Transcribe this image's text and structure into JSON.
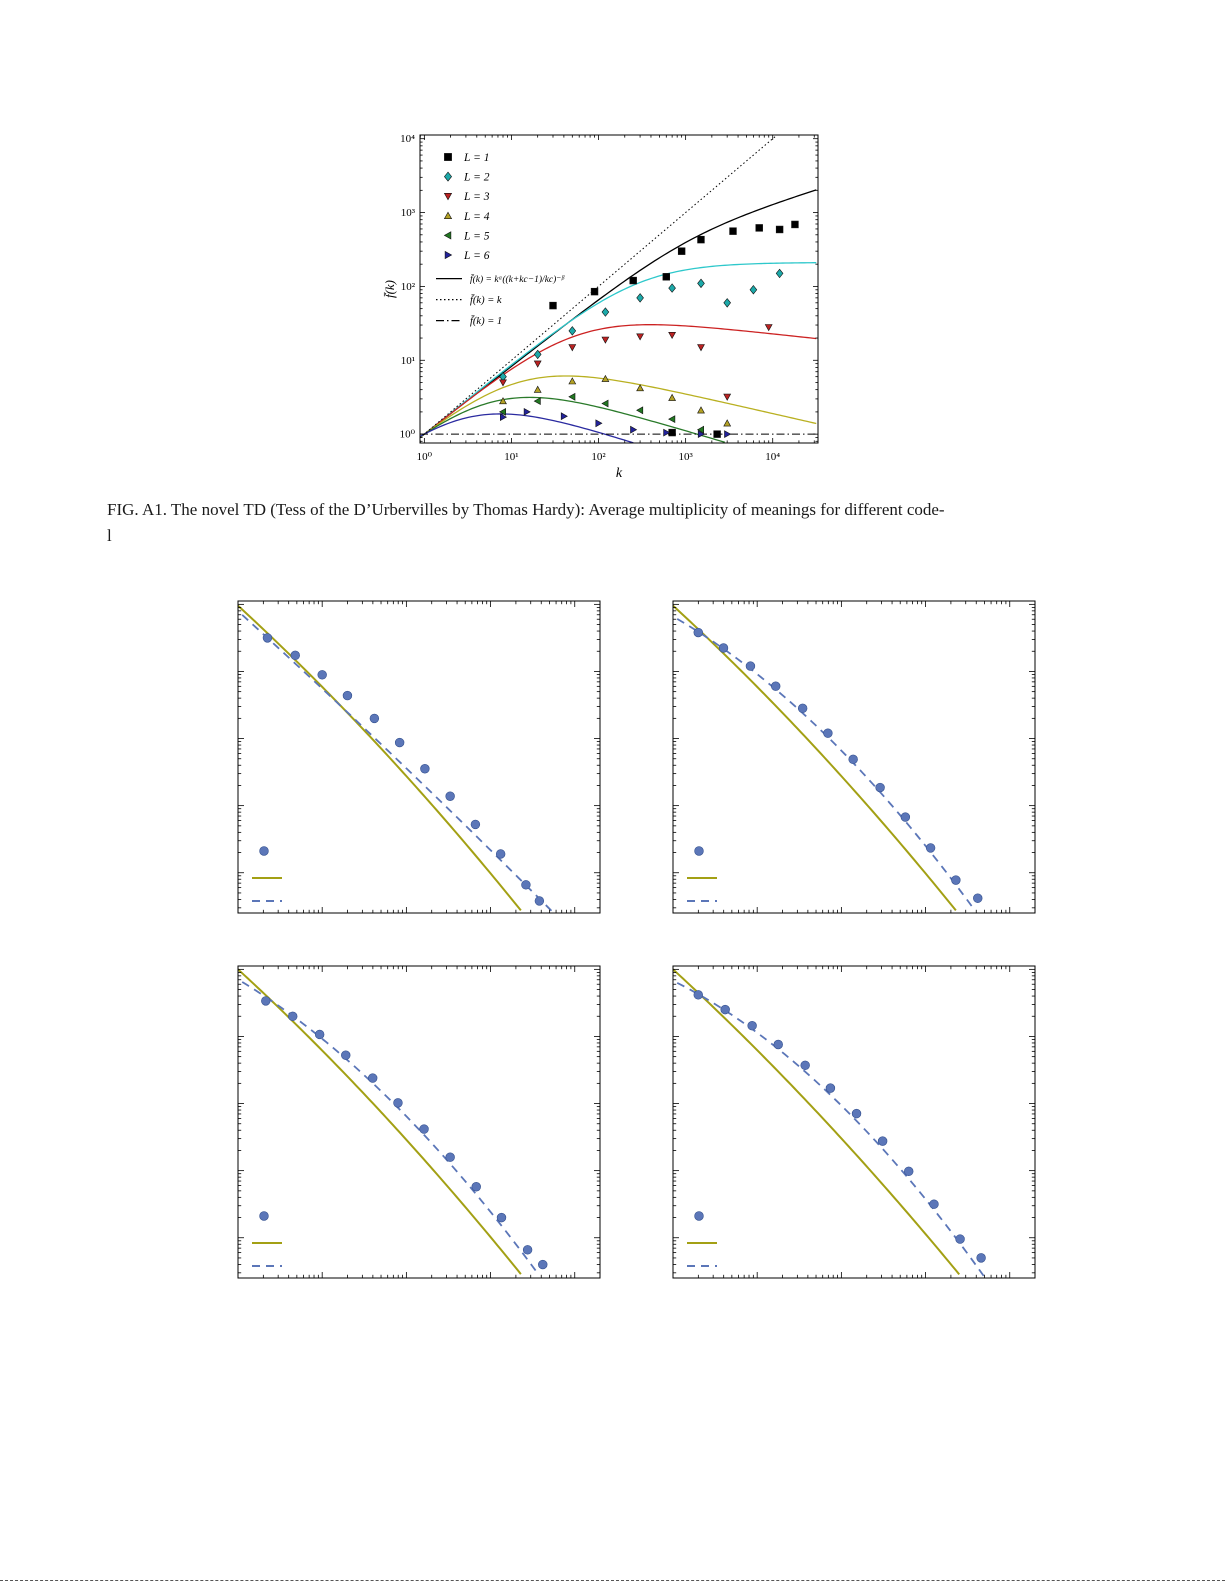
{
  "caption": {
    "line1": "FIG. A1.  The novel TD (Tess of the D’Urbervilles by Thomas Hardy): Average multiplicity of meanings for different code-",
    "line2": "l"
  },
  "chart_data": [
    {
      "id": "main",
      "type": "scatter",
      "title": "",
      "xlabel": "k",
      "ylabel": "f̄(k)",
      "xscale": "log",
      "yscale": "log",
      "xlim_log": [
        -0.05,
        4.52
      ],
      "ylim_log": [
        -0.12,
        4.05
      ],
      "xticks": {
        "decades": [
          0,
          1,
          2,
          3,
          4
        ],
        "labels": [
          "10⁰",
          "10¹",
          "10²",
          "10³",
          "10⁴"
        ]
      },
      "yticks": {
        "decades": [
          0,
          1,
          2,
          3,
          4
        ],
        "labels": [
          "10⁰",
          "10¹",
          "10²",
          "10³",
          "10⁴"
        ]
      },
      "series": [
        {
          "name": "L = 1",
          "marker": "square",
          "color": "#000000",
          "points": [
            [
              30,
              55
            ],
            [
              90,
              85
            ],
            [
              250,
              120
            ],
            [
              600,
              135
            ],
            [
              900,
              300
            ],
            [
              1500,
              430
            ],
            [
              3500,
              560
            ],
            [
              7000,
              620
            ],
            [
              12000,
              590
            ],
            [
              18000,
              690
            ],
            [
              700,
              1.05
            ],
            [
              2300,
              1.0
            ]
          ],
          "fit": {
            "alpha": 0.92,
            "kc": 1000,
            "beta": 0.55,
            "color": "#000000"
          }
        },
        {
          "name": "L = 2",
          "marker": "diamond",
          "color": "#1ca9a9",
          "points": [
            [
              8,
              6
            ],
            [
              20,
              12
            ],
            [
              50,
              25
            ],
            [
              120,
              45
            ],
            [
              300,
              70
            ],
            [
              700,
              95
            ],
            [
              1500,
              110
            ],
            [
              3000,
              60
            ],
            [
              6000,
              90
            ],
            [
              12000,
              150
            ]
          ],
          "fit": {
            "alpha": 0.95,
            "kc": 280,
            "beta": 0.95,
            "color": "#2ec8cb"
          }
        },
        {
          "name": "L = 3",
          "marker": "triangle-down",
          "color": "#bb2222",
          "points": [
            [
              8,
              5
            ],
            [
              20,
              9
            ],
            [
              50,
              15
            ],
            [
              120,
              19
            ],
            [
              300,
              21
            ],
            [
              700,
              22
            ],
            [
              1500,
              15
            ],
            [
              3000,
              3.2
            ],
            [
              9000,
              28
            ]
          ],
          "fit": {
            "alpha": 0.95,
            "kc": 55,
            "beta": 1.08,
            "color": "#cc2222"
          }
        },
        {
          "name": "L = 4",
          "marker": "triangle-up",
          "color": "#b3a125",
          "points": [
            [
              8,
              2.8
            ],
            [
              20,
              4.0
            ],
            [
              50,
              5.2
            ],
            [
              120,
              5.6
            ],
            [
              300,
              4.2
            ],
            [
              700,
              3.1
            ],
            [
              1500,
              2.1
            ],
            [
              3000,
              1.4
            ]
          ],
          "fit": {
            "alpha": 0.95,
            "kc": 13,
            "beta": 1.22,
            "color": "#b9b021"
          }
        },
        {
          "name": "L = 5",
          "marker": "triangle-left",
          "color": "#227722",
          "points": [
            [
              8,
              2.0
            ],
            [
              20,
              2.8
            ],
            [
              50,
              3.2
            ],
            [
              120,
              2.6
            ],
            [
              300,
              2.1
            ],
            [
              700,
              1.6
            ],
            [
              1500,
              1.15
            ]
          ],
          "fit": {
            "alpha": 0.95,
            "kc": 7,
            "beta": 1.3,
            "color": "#2a7a2a"
          }
        },
        {
          "name": "L = 6",
          "marker": "triangle-right",
          "color": "#22229a",
          "points": [
            [
              8,
              1.7
            ],
            [
              15,
              2.0
            ],
            [
              40,
              1.75
            ],
            [
              100,
              1.4
            ],
            [
              250,
              1.15
            ],
            [
              600,
              1.05
            ],
            [
              1500,
              1.0
            ],
            [
              3000,
              1.0
            ]
          ],
          "fit": {
            "alpha": 0.95,
            "kc": 4,
            "beta": 1.33,
            "color": "#2a2aa0"
          }
        }
      ],
      "reference_lines": [
        {
          "label": "f̄(k) = k",
          "kind": "identity",
          "dash": "1.5 2.5",
          "color": "#000000"
        },
        {
          "label": "f̄(k) = 1",
          "kind": "const",
          "value": 1,
          "dash": "8 3 1.5 3",
          "color": "#000000"
        }
      ],
      "legend": [
        {
          "swatch": "marker",
          "marker": "square",
          "color": "#000000",
          "label": "L = 1"
        },
        {
          "swatch": "marker",
          "marker": "diamond",
          "color": "#1ca9a9",
          "label": "L = 2"
        },
        {
          "swatch": "marker",
          "marker": "triangle-down",
          "color": "#bb2222",
          "label": "L = 3"
        },
        {
          "swatch": "marker",
          "marker": "triangle-up",
          "color": "#b3a125",
          "label": "L = 4"
        },
        {
          "swatch": "marker",
          "marker": "triangle-left",
          "color": "#227722",
          "label": "L = 5"
        },
        {
          "swatch": "marker",
          "marker": "triangle-right",
          "color": "#22229a",
          "label": "L = 6"
        },
        {
          "swatch": "line",
          "color": "#000000",
          "dash": "",
          "fs": 9.5,
          "label": "f̄(k) = kᵅ((k+kc−1)/kc)⁻ᵝ"
        },
        {
          "swatch": "line",
          "color": "#000000",
          "dash": "1.5 2.5",
          "fs": 10.5,
          "label": "f̄(k) = k"
        },
        {
          "swatch": "line",
          "color": "#000000",
          "dash": "8 3 1.5 3",
          "fs": 10.5,
          "label": "f̄(k) = 1"
        }
      ]
    },
    {
      "id": "panel-tl",
      "type": "scatter",
      "xscale": "log",
      "yscale": "log",
      "xlim_log": [
        0,
        4.3
      ],
      "ylim_log": [
        -4.6,
        0.05
      ],
      "xticks": {
        "decades": [
          0,
          1,
          2,
          3,
          4
        ],
        "labels": []
      },
      "yticks": {
        "decades": [
          0,
          -1,
          -2,
          -3,
          -4
        ],
        "labels": []
      },
      "dots": {
        "color": "#5b76b8",
        "edge": "#33508f",
        "points_log": [
          [
            0.35,
            -0.5
          ],
          [
            0.68,
            -0.76
          ],
          [
            1.0,
            -1.05
          ],
          [
            1.3,
            -1.36
          ],
          [
            1.62,
            -1.7
          ],
          [
            1.92,
            -2.06
          ],
          [
            2.22,
            -2.45
          ],
          [
            2.52,
            -2.86
          ],
          [
            2.82,
            -3.28
          ],
          [
            3.12,
            -3.72
          ],
          [
            3.42,
            -4.18
          ],
          [
            3.58,
            -4.42
          ]
        ]
      },
      "solid": {
        "a": 1.15,
        "b": 0.06,
        "off": 0.02,
        "x0": 0,
        "color": "#a3a014"
      },
      "dashed": {
        "a": 1.14,
        "b": 0.016,
        "off": 0.1,
        "x0": 0.05,
        "color": "#5b76b8",
        "dash": "8 6"
      },
      "legend": [
        {
          "swatch": "marker",
          "marker": "circle",
          "color": "#5b76b8",
          "label": ""
        },
        {
          "swatch": "line",
          "color": "#a3a014",
          "dash": "",
          "label": ""
        },
        {
          "swatch": "line",
          "color": "#5b76b8",
          "dash": "8 6",
          "label": ""
        }
      ]
    },
    {
      "id": "panel-tr",
      "type": "scatter",
      "xscale": "log",
      "yscale": "log",
      "xlim_log": [
        0,
        4.3
      ],
      "ylim_log": [
        -4.6,
        0.05
      ],
      "xticks": {
        "decades": [
          0,
          1,
          2,
          3,
          4
        ],
        "labels": []
      },
      "yticks": {
        "decades": [
          0,
          -1,
          -2,
          -3,
          -4
        ],
        "labels": []
      },
      "dots": {
        "color": "#5b76b8",
        "edge": "#33508f",
        "points_log": [
          [
            0.3,
            -0.42
          ],
          [
            0.6,
            -0.65
          ],
          [
            0.92,
            -0.92
          ],
          [
            1.22,
            -1.22
          ],
          [
            1.54,
            -1.55
          ],
          [
            1.84,
            -1.92
          ],
          [
            2.14,
            -2.31
          ],
          [
            2.46,
            -2.73
          ],
          [
            2.76,
            -3.17
          ],
          [
            3.06,
            -3.63
          ],
          [
            3.36,
            -4.11
          ],
          [
            3.62,
            -4.38
          ]
        ]
      },
      "solid": {
        "a": 1.15,
        "b": 0.06,
        "off": 0.02,
        "x0": 0,
        "color": "#a3a014"
      },
      "dashed": {
        "a": 0.72,
        "b": 0.14,
        "off": 0.18,
        "x0": 0.05,
        "color": "#5b76b8",
        "dash": "8 6"
      },
      "legend": [
        {
          "swatch": "marker",
          "marker": "circle",
          "color": "#5b76b8",
          "label": ""
        },
        {
          "swatch": "line",
          "color": "#a3a014",
          "dash": "",
          "label": ""
        },
        {
          "swatch": "line",
          "color": "#5b76b8",
          "dash": "8 6",
          "label": ""
        }
      ]
    },
    {
      "id": "panel-bl",
      "type": "scatter",
      "xscale": "log",
      "yscale": "log",
      "xlim_log": [
        0,
        4.3
      ],
      "ylim_log": [
        -4.6,
        0.05
      ],
      "xticks": {
        "decades": [
          0,
          1,
          2,
          3,
          4
        ],
        "labels": []
      },
      "yticks": {
        "decades": [
          0,
          -1,
          -2,
          -3,
          -4
        ],
        "labels": []
      },
      "dots": {
        "color": "#5b76b8",
        "edge": "#33508f",
        "points_log": [
          [
            0.33,
            -0.47
          ],
          [
            0.65,
            -0.7
          ],
          [
            0.97,
            -0.97
          ],
          [
            1.28,
            -1.28
          ],
          [
            1.6,
            -1.62
          ],
          [
            1.9,
            -1.99
          ],
          [
            2.21,
            -2.38
          ],
          [
            2.52,
            -2.8
          ],
          [
            2.83,
            -3.24
          ],
          [
            3.13,
            -3.7
          ],
          [
            3.44,
            -4.18
          ],
          [
            3.62,
            -4.4
          ]
        ]
      },
      "solid": {
        "a": 1.15,
        "b": 0.06,
        "off": 0.0,
        "x0": 0,
        "color": "#a3a014"
      },
      "dashed": {
        "a": 0.75,
        "b": 0.135,
        "off": 0.15,
        "x0": 0.05,
        "color": "#5b76b8",
        "dash": "8 6"
      },
      "legend": [
        {
          "swatch": "marker",
          "marker": "circle",
          "color": "#5b76b8",
          "label": ""
        },
        {
          "swatch": "line",
          "color": "#a3a014",
          "dash": "",
          "label": ""
        },
        {
          "swatch": "line",
          "color": "#5b76b8",
          "dash": "8 6",
          "label": ""
        }
      ]
    },
    {
      "id": "panel-br",
      "type": "scatter",
      "xscale": "log",
      "yscale": "log",
      "xlim_log": [
        0,
        4.3
      ],
      "ylim_log": [
        -4.6,
        0.05
      ],
      "xticks": {
        "decades": [
          0,
          1,
          2,
          3,
          4
        ],
        "labels": []
      },
      "yticks": {
        "decades": [
          0,
          -1,
          -2,
          -3,
          -4
        ],
        "labels": []
      },
      "dots": {
        "color": "#5b76b8",
        "edge": "#33508f",
        "points_log": [
          [
            0.3,
            -0.38
          ],
          [
            0.62,
            -0.6
          ],
          [
            0.94,
            -0.84
          ],
          [
            1.25,
            -1.12
          ],
          [
            1.57,
            -1.43
          ],
          [
            1.87,
            -1.77
          ],
          [
            2.18,
            -2.15
          ],
          [
            2.49,
            -2.56
          ],
          [
            2.8,
            -3.01
          ],
          [
            3.1,
            -3.5
          ],
          [
            3.41,
            -4.02
          ],
          [
            3.66,
            -4.3
          ]
        ]
      },
      "solid": {
        "a": 1.15,
        "b": 0.055,
        "off": 0.0,
        "x0": 0,
        "color": "#a3a014"
      },
      "dashed": {
        "a": 0.62,
        "b": 0.155,
        "off": 0.17,
        "x0": 0.05,
        "color": "#5b76b8",
        "dash": "8 6"
      },
      "legend": [
        {
          "swatch": "marker",
          "marker": "circle",
          "color": "#5b76b8",
          "label": ""
        },
        {
          "swatch": "line",
          "color": "#a3a014",
          "dash": "",
          "label": ""
        },
        {
          "swatch": "line",
          "color": "#5b76b8",
          "dash": "8 6",
          "label": ""
        }
      ]
    }
  ]
}
